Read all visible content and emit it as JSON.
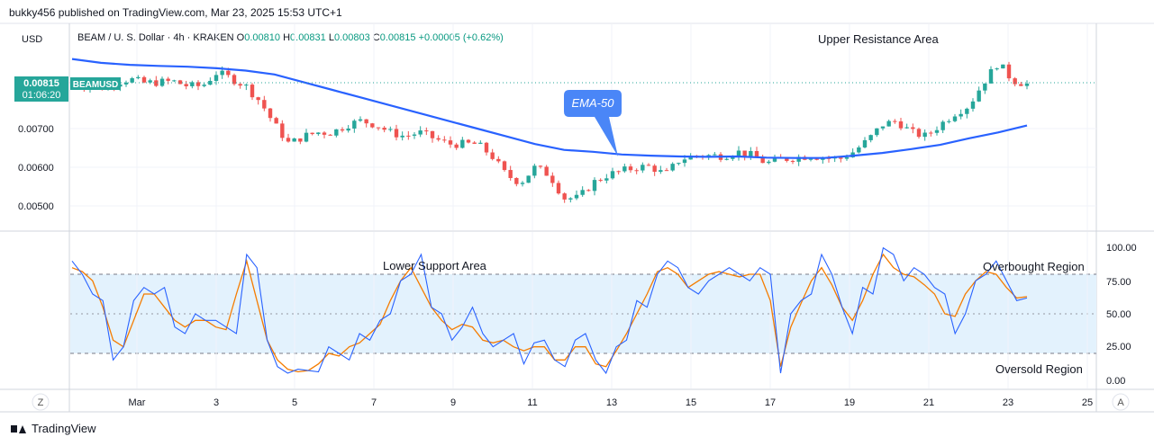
{
  "header": {
    "published_by": "bukky456 published on TradingView.com, Mar 23, 2025 15:53 UTC+1"
  },
  "currency_label": "USD",
  "symbol": {
    "name": "BEAM / U. S. Dollar · 4h · KRAKEN",
    "open_label": "O",
    "open": "0.00810",
    "high_label": "H",
    "high": "0.00831",
    "low_label": "L",
    "low": "0.00803",
    "close_label": "C",
    "close": "0.00815",
    "change": "+0.00005 (+0.62%)"
  },
  "price_tag": {
    "price": "0.00815",
    "ticker": "BEAMUSD",
    "countdown": "01:06:20"
  },
  "colors": {
    "up": "#26a69a",
    "down": "#ef5350",
    "ema": "#2962ff",
    "stoch_k": "#2962ff",
    "stoch_d": "#f57c00",
    "band": "#e3f2fd",
    "callout": "#4a86f7"
  },
  "icons": {
    "footer_logo": "tradingview-logo-icon"
  },
  "annotations": {
    "upper_resistance": "Upper Resistance Area",
    "ema_callout": "EMA-50",
    "lower_support": "Lower Support Area",
    "overbought": "Overbought Region",
    "oversold": "Oversold Region"
  },
  "footer": {
    "z_button": "Z",
    "a_button": "A",
    "brand": "TradingView"
  },
  "chart_data": [
    {
      "type": "candlestick",
      "price_axis_ticks": [
        "0.00700",
        "0.00600",
        "0.00500"
      ],
      "x_tick_labels": [
        "Mar",
        "3",
        "5",
        "7",
        "9",
        "11",
        "13",
        "15",
        "17",
        "19",
        "21",
        "23",
        "25"
      ],
      "close_path": [
        0.0082,
        0.0081,
        0.00805,
        0.0082,
        0.00828,
        0.00818,
        0.0082,
        0.00822,
        0.0081,
        0.0081,
        0.00845,
        0.0083,
        0.0081,
        0.0077,
        0.0071,
        0.0066,
        0.0068,
        0.0069,
        0.0069,
        0.0071,
        0.0072,
        0.0071,
        0.0069,
        0.0068,
        0.0069,
        0.00675,
        0.0066,
        0.0066,
        0.0066,
        0.0063,
        0.0058,
        0.0056,
        0.006,
        0.0058,
        0.0052,
        0.0052,
        0.0056,
        0.0058,
        0.0059,
        0.006,
        0.00602,
        0.0058,
        0.0062,
        0.0063,
        0.0063,
        0.0063,
        0.0064,
        0.0063,
        0.0061,
        0.0062,
        0.00625,
        0.0063,
        0.00625,
        0.0062,
        0.0064,
        0.0067,
        0.0071,
        0.0072,
        0.0069,
        0.0068,
        0.0071,
        0.0074,
        0.0076,
        0.0082,
        0.0087,
        0.00825,
        0.00815
      ],
      "ema50": [
        0.0088,
        0.0087,
        0.00865,
        0.00862,
        0.0086,
        0.00856,
        0.0085,
        0.0084,
        0.0082,
        0.008,
        0.0078,
        0.0076,
        0.0074,
        0.0072,
        0.007,
        0.0068,
        0.0066,
        0.00645,
        0.0064,
        0.00633,
        0.0063,
        0.00628,
        0.00627,
        0.00628,
        0.00625,
        0.00624,
        0.00624,
        0.0063,
        0.00637,
        0.00647,
        0.00658,
        0.00675,
        0.0069,
        0.00708
      ],
      "ema_label": "EMA-50"
    },
    {
      "type": "line",
      "name": "stochastic",
      "y_ticks": [
        100,
        75,
        50,
        25,
        0
      ],
      "y_tick_labels": [
        "100.00",
        "75.00",
        "50.00",
        "25.00",
        "0.00"
      ],
      "ylim": [
        0,
        100
      ],
      "bands": {
        "upper": 80,
        "middle": 50,
        "lower": 20
      },
      "series": [
        {
          "values": [
            90,
            80,
            65,
            60,
            15,
            25,
            60,
            70,
            65,
            70,
            40,
            35,
            50,
            45,
            45,
            40,
            35,
            95,
            85,
            30,
            10,
            5,
            8,
            7,
            6,
            25,
            20,
            15,
            35,
            30,
            45,
            50,
            75,
            80,
            95,
            55,
            50,
            30,
            40,
            55,
            35,
            25,
            30,
            35,
            12,
            28,
            30,
            15,
            10,
            30,
            35,
            15,
            5,
            25,
            30,
            60,
            55,
            80,
            90,
            85,
            70,
            65,
            75,
            80,
            85,
            80,
            75,
            85,
            80,
            5,
            50,
            60,
            65,
            95,
            80,
            55,
            35,
            70,
            65,
            100,
            95,
            75,
            85,
            80,
            70,
            65,
            35,
            50,
            75,
            80,
            90,
            75,
            60,
            62
          ]
        },
        {
          "values": [
            85,
            82,
            75,
            55,
            30,
            25,
            45,
            65,
            65,
            55,
            45,
            40,
            45,
            45,
            40,
            38,
            65,
            90,
            60,
            30,
            15,
            8,
            6,
            7,
            12,
            20,
            18,
            25,
            28,
            35,
            42,
            60,
            75,
            85,
            70,
            55,
            45,
            38,
            42,
            40,
            30,
            28,
            30,
            25,
            22,
            25,
            25,
            15,
            15,
            25,
            25,
            12,
            10,
            22,
            35,
            50,
            65,
            82,
            85,
            80,
            70,
            75,
            80,
            82,
            80,
            78,
            80,
            80,
            60,
            10,
            40,
            58,
            75,
            85,
            72,
            55,
            45,
            60,
            80,
            95,
            85,
            80,
            78,
            72,
            65,
            50,
            48,
            65,
            75,
            82,
            80,
            70,
            62,
            63
          ]
        }
      ]
    }
  ]
}
